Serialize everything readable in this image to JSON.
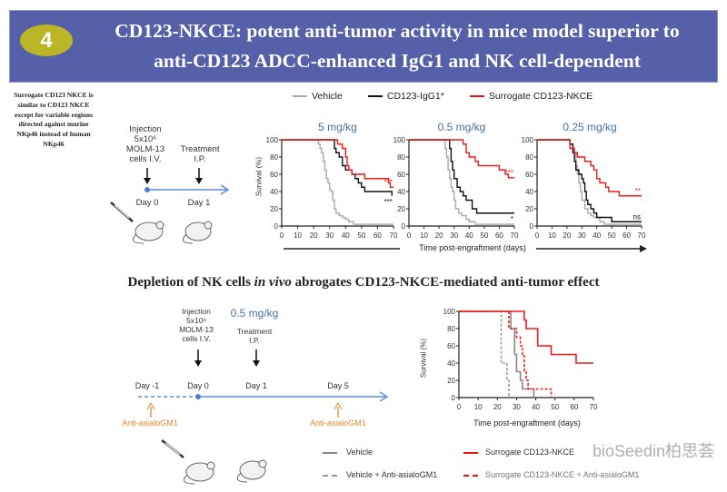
{
  "header": {
    "badge": "4",
    "title_line1": "CD123-NKCE: potent anti-tumor activity in mice model  superior to",
    "title_line2": "anti-CD123 ADCC-enhanced IgG1 and NK cell-dependent"
  },
  "note": "Surrogate CD123 NKCE is similar to CD123 NKCE except for variable regions directed against murine NKp46 instead of human NKp46",
  "top_schema": {
    "injection": "Injection",
    "cells": "5x10⁶",
    "line": "MOLM-13",
    "route": "cells I.V.",
    "treatment": "Treatment",
    "treatment_route": "I.P.",
    "day0": "Day 0",
    "day1": "Day 1"
  },
  "top_legend": [
    "Vehicle",
    "CD123-IgG1*",
    "Surrogate CD123-NKCE"
  ],
  "top_xlabel": "Time post-engraftment  (days)",
  "subtitle_pre": "Depletion of NK cells ",
  "subtitle_em": "in vivo",
  "subtitle_post": " abrogates CD123-NKCE-mediated  anti-tumor effect",
  "bottom_schema": {
    "injection": "Injection",
    "cells": "5x10⁶",
    "line": "MOLM-13",
    "route": "cells I.V.",
    "dose": "0.5 mg/kg",
    "treatment": "Treatment",
    "treatment_route": "I.P.",
    "day_m1": "Day -1",
    "day0": "Day 0",
    "day1": "Day 1",
    "day5": "Day 5",
    "depletion1": "Anti-asialoGM1",
    "depletion2": "Anti-asialoGM1"
  },
  "bottom_legend": [
    "Vehicle",
    "Vehicle + Anti-asialoGM1",
    "Surrogate CD123-NKCE",
    "Surrogate CD123-NKCE + Anti-asialoGM1"
  ],
  "watermark": "bioSeedin柏思荟",
  "colors": {
    "banner": "#5660a9",
    "badge": "#bbb626",
    "vehicle": "#aaaaaa",
    "igg1": "#111111",
    "nkce": "#ee1c1c",
    "dose": "#4a6fa8",
    "timeline": "#4a7fc8",
    "depletion": "#e58a2c"
  },
  "chart_data": [
    {
      "type": "line",
      "step": true,
      "title": "5 mg/kg",
      "ylabel": "Survival (%)",
      "xlabel": "",
      "xlim": [
        0,
        70
      ],
      "ylim": [
        0,
        100
      ],
      "xticks": [
        "0",
        "10",
        "20",
        "30",
        "40",
        "50",
        "60",
        "70"
      ],
      "yticks": [
        "0",
        "20",
        "40",
        "60",
        "80",
        "100"
      ],
      "series": [
        {
          "name": "Vehicle",
          "color": "#aaaaaa",
          "x": [
            0,
            22,
            23,
            24,
            25,
            26,
            27,
            28,
            29,
            30,
            31,
            32,
            33,
            34,
            36,
            38,
            40,
            42,
            45,
            70
          ],
          "y": [
            100,
            100,
            95,
            90,
            85,
            75,
            65,
            55,
            50,
            42,
            40,
            30,
            20,
            15,
            12,
            10,
            8,
            5,
            2,
            2
          ]
        },
        {
          "name": "CD123-IgG1*",
          "color": "#111111",
          "x": [
            0,
            32,
            33,
            34,
            36,
            38,
            40,
            44,
            46,
            48,
            50,
            52,
            68,
            69
          ],
          "y": [
            100,
            100,
            90,
            85,
            80,
            70,
            65,
            60,
            55,
            50,
            45,
            40,
            40,
            35
          ],
          "annotation": "***"
        },
        {
          "name": "Surrogate CD123-NKCE",
          "color": "#ee1c1c",
          "x": [
            0,
            34,
            35,
            38,
            40,
            41,
            42,
            44,
            52,
            66,
            67,
            68,
            70
          ],
          "y": [
            100,
            100,
            95,
            90,
            80,
            70,
            65,
            60,
            55,
            55,
            50,
            45,
            45
          ],
          "annotation": "***"
        }
      ]
    },
    {
      "type": "line",
      "step": true,
      "title": "0.5 mg/kg",
      "xlim": [
        0,
        70
      ],
      "ylim": [
        0,
        100
      ],
      "xticks": [
        "0",
        "10",
        "20",
        "30",
        "40",
        "50",
        "60",
        "70"
      ],
      "yticks": [
        "0",
        "20",
        "40",
        "60",
        "80",
        "100"
      ],
      "series": [
        {
          "name": "Vehicle",
          "color": "#aaaaaa",
          "x": [
            0,
            22,
            24,
            25,
            26,
            27,
            28,
            29,
            30,
            31,
            33,
            35,
            38,
            40,
            44,
            70
          ],
          "y": [
            100,
            100,
            90,
            80,
            65,
            55,
            45,
            40,
            30,
            20,
            15,
            12,
            8,
            5,
            2,
            2
          ]
        },
        {
          "name": "CD123-IgG1*",
          "color": "#111111",
          "x": [
            0,
            26,
            27,
            28,
            29,
            30,
            32,
            34,
            36,
            38,
            42,
            45,
            70
          ],
          "y": [
            100,
            100,
            90,
            75,
            65,
            55,
            45,
            40,
            35,
            30,
            20,
            15,
            15
          ],
          "annotation": "*"
        },
        {
          "name": "Surrogate CD123-NKCE",
          "color": "#ee1c1c",
          "x": [
            0,
            35,
            36,
            38,
            40,
            44,
            46,
            58,
            60,
            64,
            66,
            70
          ],
          "y": [
            100,
            100,
            95,
            85,
            80,
            75,
            70,
            70,
            65,
            60,
            56,
            56
          ],
          "annotation": "***"
        }
      ]
    },
    {
      "type": "line",
      "step": true,
      "title": "0.25 mg/kg",
      "xlim": [
        0,
        70
      ],
      "ylim": [
        0,
        100
      ],
      "xticks": [
        "0",
        "10",
        "20",
        "30",
        "40",
        "50",
        "60",
        "70"
      ],
      "yticks": [
        "0",
        "20",
        "40",
        "60",
        "80",
        "100"
      ],
      "series": [
        {
          "name": "Vehicle",
          "color": "#aaaaaa",
          "x": [
            0,
            20,
            22,
            24,
            26,
            27,
            28,
            29,
            30,
            32,
            34,
            36,
            38,
            42,
            45,
            70
          ],
          "y": [
            100,
            100,
            95,
            85,
            70,
            60,
            50,
            40,
            30,
            20,
            15,
            12,
            10,
            5,
            2,
            2
          ]
        },
        {
          "name": "CD123-IgG1*",
          "color": "#111111",
          "x": [
            0,
            21,
            22,
            24,
            25,
            26,
            28,
            30,
            31,
            32,
            33,
            34,
            36,
            38,
            40,
            50,
            70
          ],
          "y": [
            100,
            100,
            95,
            85,
            75,
            65,
            60,
            55,
            50,
            40,
            30,
            25,
            20,
            15,
            10,
            5,
            5
          ],
          "annotation": "ns"
        },
        {
          "name": "Surrogate CD123-NKCE",
          "color": "#ee1c1c",
          "x": [
            0,
            21,
            22,
            25,
            27,
            32,
            36,
            38,
            40,
            42,
            46,
            48,
            55,
            70
          ],
          "y": [
            100,
            100,
            90,
            85,
            80,
            75,
            70,
            65,
            55,
            50,
            45,
            40,
            35,
            35
          ],
          "annotation": "**"
        }
      ]
    },
    {
      "type": "line",
      "step": true,
      "title": "",
      "ylabel": "Survival (%)",
      "xlabel": "Time post-engraftment  (days)",
      "xlim": [
        0,
        70
      ],
      "ylim": [
        0,
        100
      ],
      "xticks": [
        "0",
        "10",
        "20",
        "30",
        "40",
        "50",
        "60",
        "70"
      ],
      "yticks": [
        "0",
        "20",
        "40",
        "60",
        "80",
        "100"
      ],
      "series": [
        {
          "name": "Vehicle",
          "color": "#888888",
          "dashed": false,
          "x": [
            0,
            26,
            27,
            29,
            30,
            32,
            33,
            38,
            39
          ],
          "y": [
            100,
            100,
            80,
            50,
            30,
            20,
            10,
            10,
            0
          ]
        },
        {
          "name": "Vehicle + Anti-asialoGM1",
          "color": "#999999",
          "dashed": true,
          "x": [
            0,
            21,
            22,
            24,
            25,
            26
          ],
          "y": [
            100,
            100,
            40,
            40,
            20,
            0
          ]
        },
        {
          "name": "Surrogate CD123-NKCE",
          "color": "#ee1c1c",
          "dashed": false,
          "x": [
            0,
            33,
            34,
            35,
            40,
            41,
            47,
            48,
            60,
            61,
            70
          ],
          "y": [
            100,
            100,
            90,
            80,
            80,
            60,
            60,
            50,
            50,
            40,
            40
          ]
        },
        {
          "name": "Surrogate CD123-NKCE + Anti-asialoGM1",
          "color": "#ee1c1c",
          "dashed": true,
          "x": [
            0,
            25,
            26,
            29,
            30,
            32,
            33,
            34,
            35,
            36,
            47,
            48
          ],
          "y": [
            100,
            100,
            80,
            80,
            70,
            60,
            50,
            30,
            20,
            10,
            10,
            0
          ]
        }
      ]
    }
  ]
}
